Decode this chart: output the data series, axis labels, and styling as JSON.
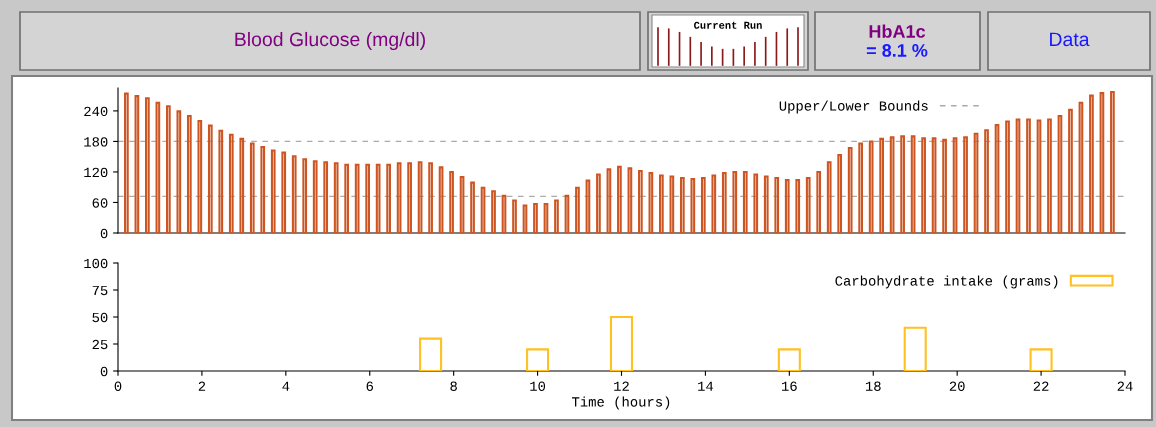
{
  "chart_data": [
    {
      "type": "bar",
      "title": "Blood Glucose (mg/dl)",
      "annotations": [
        "Current Run",
        "HbA1c",
        "= 8.1 %",
        "Data"
      ],
      "x": [
        0.2,
        0.45,
        0.7,
        0.95,
        1.2,
        1.45,
        1.7,
        1.95,
        2.2,
        2.45,
        2.7,
        2.95,
        3.2,
        3.45,
        3.7,
        3.95,
        4.2,
        4.45,
        4.7,
        4.95,
        5.2,
        5.45,
        5.7,
        5.95,
        6.2,
        6.45,
        6.7,
        6.95,
        7.2,
        7.45,
        7.7,
        7.95,
        8.2,
        8.45,
        8.7,
        8.95,
        9.2,
        9.45,
        9.7,
        9.95,
        10.2,
        10.45,
        10.7,
        10.95,
        11.2,
        11.45,
        11.7,
        11.95,
        12.2,
        12.45,
        12.7,
        12.95,
        13.2,
        13.45,
        13.7,
        13.95,
        14.2,
        14.45,
        14.7,
        14.95,
        15.2,
        15.45,
        15.7,
        15.95,
        16.2,
        16.45,
        16.7,
        16.95,
        17.2,
        17.45,
        17.7,
        17.95,
        18.2,
        18.45,
        18.7,
        18.95,
        19.2,
        19.45,
        19.7,
        19.95,
        20.2,
        20.45,
        20.7,
        20.95,
        21.2,
        21.45,
        21.7,
        21.95,
        22.2,
        22.45,
        22.7,
        22.95,
        23.2,
        23.45,
        23.7
      ],
      "series": [
        {
          "color": "#cc5522",
          "values": [
            274,
            269,
            265,
            256,
            249,
            239,
            230,
            220,
            211,
            201,
            193,
            185,
            176,
            169,
            162,
            158,
            151,
            145,
            141,
            139,
            137,
            134,
            134,
            134,
            134,
            134,
            137,
            137,
            139,
            137,
            129,
            120,
            110,
            99,
            89,
            82,
            73,
            64,
            54,
            57,
            57,
            64,
            73,
            89,
            103,
            115,
            125,
            130,
            127,
            122,
            118,
            113,
            111,
            108,
            106,
            108,
            113,
            118,
            120,
            120,
            115,
            111,
            108,
            104,
            104,
            108,
            120,
            139,
            153,
            167,
            176,
            180,
            185,
            188,
            190,
            190,
            186,
            186,
            183,
            186,
            188,
            195,
            202,
            212,
            219,
            223,
            223,
            221,
            223,
            230,
            242,
            256,
            270,
            275,
            277
          ]
        }
      ],
      "xlim": [
        0,
        24
      ],
      "ylim": [
        0,
        285
      ],
      "yticks": [
        0,
        60,
        120,
        180,
        240
      ],
      "tick_labels": "y",
      "ref_lines": [
        {
          "axis": "y",
          "value": 180,
          "label": "Upper/Lower Bounds",
          "color": "#aaaaaa",
          "line_style": "dashed"
        },
        {
          "axis": "y",
          "value": 72,
          "color": "#aaaaaa",
          "line_style": "dashed"
        }
      ],
      "legend": "top right"
    },
    {
      "type": "bar",
      "xlabel": "Time (hours)",
      "x": [
        7.45,
        10,
        12,
        16,
        19,
        22
      ],
      "series": [
        {
          "name": "Carbohydrate intake (grams)",
          "color": "#ffc020",
          "values": [
            30,
            20,
            50,
            20,
            40,
            20
          ]
        }
      ],
      "xlim": [
        0,
        24
      ],
      "xticks": [
        0,
        2,
        4,
        6,
        8,
        10,
        12,
        14,
        16,
        18,
        20,
        22,
        24
      ],
      "ylim": [
        0,
        100
      ],
      "yticks": [
        0,
        25,
        50,
        75,
        100
      ],
      "legend": "top right"
    }
  ]
}
